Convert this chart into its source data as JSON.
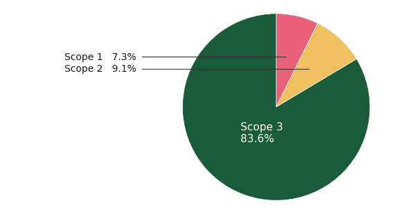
{
  "labels": [
    "Scope 1",
    "Scope 2",
    "Scope 3"
  ],
  "values": [
    7.3,
    9.1,
    83.6
  ],
  "colors": [
    "#E8607A",
    "#F0C060",
    "#1A5C3A"
  ],
  "background_color": "#ffffff",
  "text_color_dark": "#1a1a1a",
  "text_color_light": "#ffffff",
  "startangle": 90,
  "scope1_label": "Scope 1   7.3%",
  "scope2_label": "Scope 2   9.1%",
  "scope3_label": "Scope 3\n83.6%",
  "label_fontsize": 10,
  "scope3_fontsize": 11
}
